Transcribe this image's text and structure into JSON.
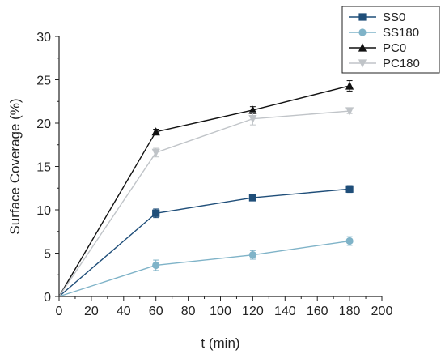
{
  "chart_data": {
    "type": "line",
    "xlabel": "t (min)",
    "ylabel": "Surface Coverage (%)",
    "xlim": [
      0,
      200
    ],
    "ylim": [
      0,
      30
    ],
    "xticks": [
      0,
      20,
      40,
      60,
      80,
      100,
      120,
      140,
      160,
      180,
      200
    ],
    "yticks": [
      0,
      5,
      10,
      15,
      20,
      25,
      30
    ],
    "grid": false,
    "legend_position": "top-right",
    "x": [
      0,
      60,
      120,
      180
    ],
    "series": [
      {
        "name": "SS0",
        "color": "#1f4e79",
        "marker": "square",
        "values": [
          0,
          9.6,
          11.4,
          12.4
        ],
        "errors": [
          0,
          0.5,
          0.3,
          0.4
        ]
      },
      {
        "name": "SS180",
        "color": "#7fb3c8",
        "marker": "circle",
        "values": [
          0,
          3.6,
          4.8,
          6.4
        ],
        "errors": [
          0,
          0.6,
          0.5,
          0.5
        ]
      },
      {
        "name": "PC0",
        "color": "#111111",
        "marker": "triangle-up",
        "values": [
          0,
          19.0,
          21.5,
          24.3
        ],
        "errors": [
          0,
          0.3,
          0.4,
          0.6
        ]
      },
      {
        "name": "PC180",
        "color": "#c0c4c8",
        "marker": "triangle-down",
        "values": [
          0,
          16.6,
          20.5,
          21.4
        ],
        "errors": [
          0,
          0.5,
          0.7,
          0.3
        ]
      }
    ]
  }
}
